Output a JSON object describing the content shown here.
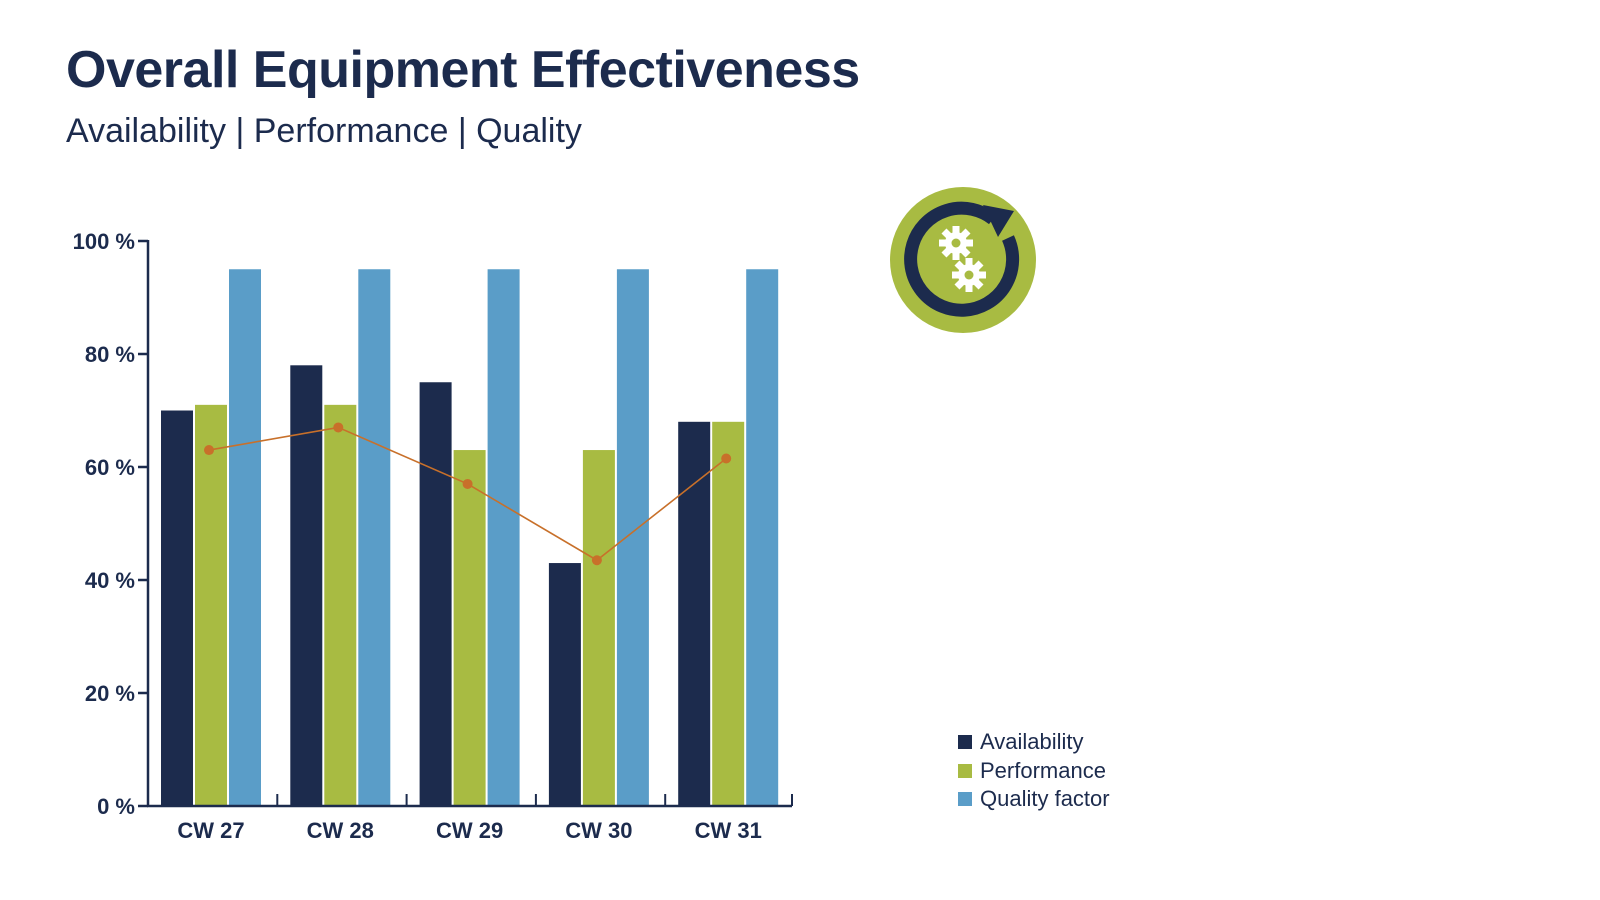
{
  "page": {
    "title": "Overall Equipment Effectiveness",
    "subtitle": "Availability | Performance | Quality"
  },
  "icon": {
    "name": "gears-cycle-icon",
    "circle_color": "#a8bb42",
    "arrow_color": "#1c2b4d",
    "gear_color": "#ffffff"
  },
  "chart_data": {
    "type": "bar",
    "categories": [
      "CW 27",
      "CW 28",
      "CW 29",
      "CW 30",
      "CW 31"
    ],
    "series": [
      {
        "name": "Availability",
        "color": "#1c2b4d",
        "values": [
          70,
          78,
          75,
          43,
          68
        ]
      },
      {
        "name": "Performance",
        "color": "#a8bb42",
        "values": [
          71,
          71,
          63,
          63,
          68
        ]
      },
      {
        "name": "Quality factor",
        "color": "#5a9dc8",
        "values": [
          95,
          95,
          95,
          95,
          95
        ]
      }
    ],
    "line": {
      "color": "#c8702a",
      "values": [
        63,
        67,
        57,
        43.5,
        61.5
      ]
    },
    "yticks": [
      "0 %",
      "20 %",
      "40 %",
      "60 %",
      "80 %",
      "100 %"
    ],
    "ylim": [
      0,
      100
    ],
    "legend_position": "bottom-right",
    "grid": false
  }
}
